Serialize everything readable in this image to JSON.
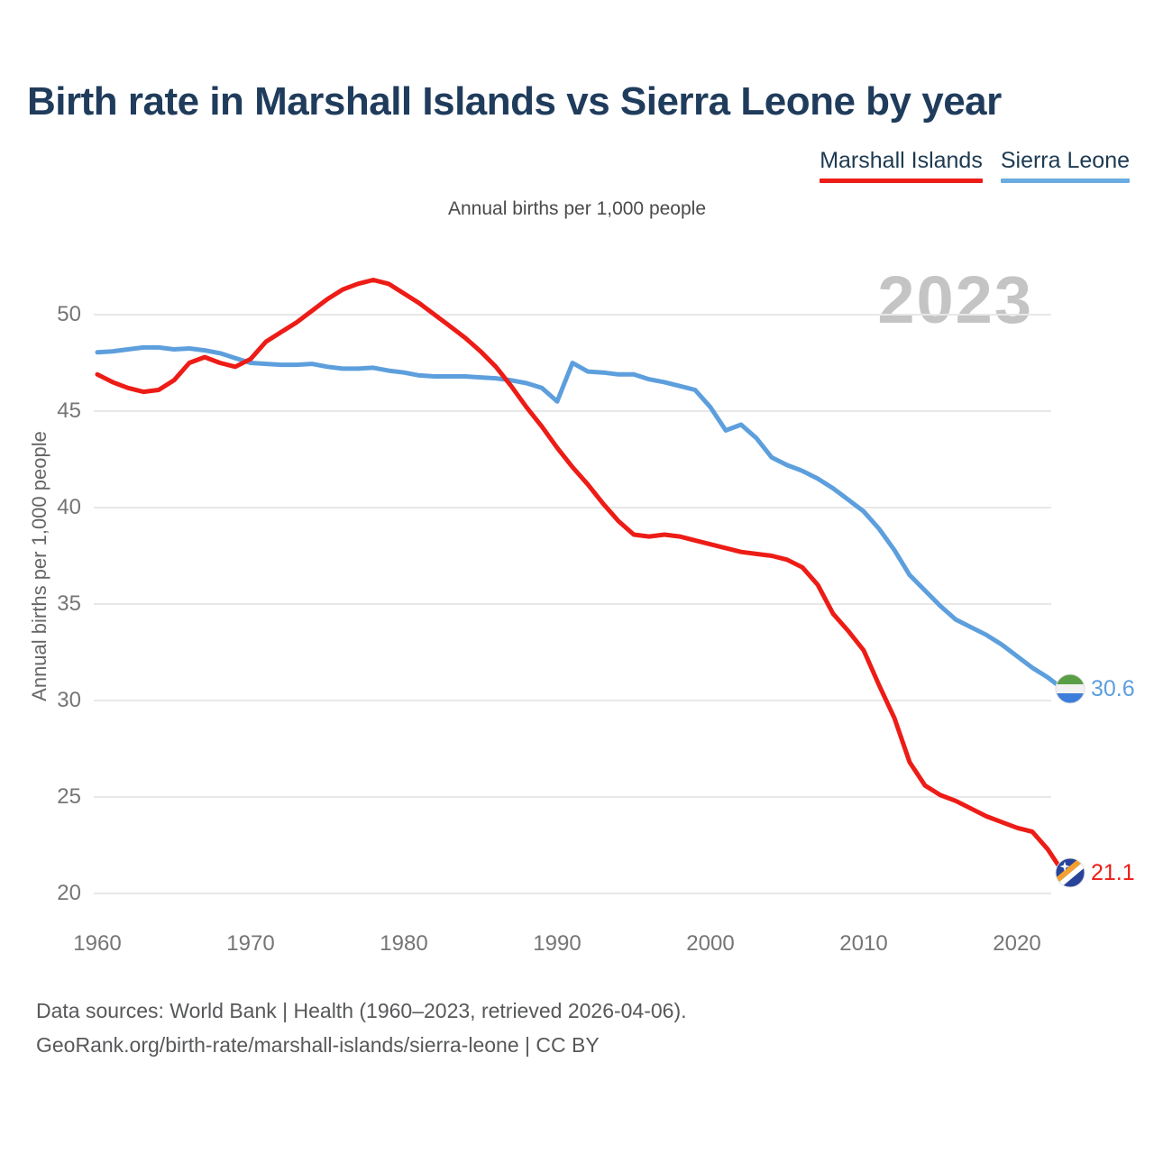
{
  "title": "Birth rate in Marshall Islands vs Sierra Leone by year",
  "subtitle": "Annual births per 1,000 people",
  "y_axis_label": "Annual births per 1,000 people",
  "watermark": "2023",
  "legend": {
    "items": [
      {
        "label": "Marshall Islands",
        "color": "#ed1c16"
      },
      {
        "label": "Sierra Leone",
        "color": "#6aabe0"
      }
    ]
  },
  "end_labels": {
    "sierra_leone": {
      "value": "30.6",
      "color": "#5d9fdd"
    },
    "marshall_islands": {
      "value": "21.1",
      "color": "#ed1c16"
    }
  },
  "footer": {
    "line1": "Data sources: World Bank | Health (1960–2023, retrieved 2026-04-06).",
    "line2": "GeoRank.org/birth-rate/marshall-islands/sierra-leone | CC BY"
  },
  "chart_data": {
    "type": "line",
    "title": "Birth rate in Marshall Islands vs Sierra Leone by year",
    "subtitle": "Annual births per 1,000 people",
    "xlabel": "",
    "ylabel": "Annual births per 1,000 people",
    "xlim": [
      1960,
      2023
    ],
    "ylim": [
      19.5,
      53
    ],
    "grid": "horizontal",
    "legend_position": "top-right",
    "x_ticks": [
      1960,
      1970,
      1980,
      1990,
      2000,
      2010,
      2020
    ],
    "x_tick_labels": [
      "1960",
      "1970",
      "1980",
      "1990",
      "2000",
      "2010",
      "2020"
    ],
    "y_ticks": [
      50,
      45,
      40,
      35,
      30,
      25,
      20
    ],
    "y_tick_labels": [
      "50",
      "45",
      "40",
      "35",
      "30",
      "25",
      "20"
    ],
    "x": [
      1960,
      1961,
      1962,
      1963,
      1964,
      1965,
      1966,
      1967,
      1968,
      1969,
      1970,
      1971,
      1972,
      1973,
      1974,
      1975,
      1976,
      1977,
      1978,
      1979,
      1980,
      1981,
      1982,
      1983,
      1984,
      1985,
      1986,
      1987,
      1988,
      1989,
      1990,
      1991,
      1992,
      1993,
      1994,
      1995,
      1996,
      1997,
      1998,
      1999,
      2000,
      2001,
      2002,
      2003,
      2004,
      2005,
      2006,
      2007,
      2008,
      2009,
      2010,
      2011,
      2012,
      2013,
      2014,
      2015,
      2016,
      2017,
      2018,
      2019,
      2020,
      2021,
      2022,
      2023
    ],
    "series": [
      {
        "name": "Marshall Islands",
        "color": "#ed1c16",
        "end_value": 21.1,
        "values": [
          46.9,
          46.5,
          46.2,
          46.0,
          46.1,
          46.6,
          47.5,
          47.8,
          47.5,
          47.3,
          47.7,
          48.6,
          49.1,
          49.6,
          50.2,
          50.8,
          51.3,
          51.6,
          51.8,
          51.6,
          51.1,
          50.6,
          50.0,
          49.4,
          48.8,
          48.1,
          47.3,
          46.3,
          45.2,
          44.2,
          43.1,
          42.1,
          41.2,
          40.2,
          39.3,
          38.6,
          38.5,
          38.6,
          38.5,
          38.3,
          38.1,
          37.9,
          37.7,
          37.6,
          37.5,
          37.3,
          36.9,
          36.0,
          34.5,
          33.6,
          32.6,
          30.8,
          29.1,
          26.8,
          25.6,
          25.1,
          24.8,
          24.4,
          24.0,
          23.7,
          23.4,
          23.2,
          22.3,
          21.1
        ]
      },
      {
        "name": "Sierra Leone",
        "color": "#5d9fdd",
        "end_value": 30.6,
        "values": [
          48.05,
          48.1,
          48.2,
          48.3,
          48.3,
          48.2,
          48.25,
          48.15,
          48.0,
          47.75,
          47.5,
          47.45,
          47.4,
          47.4,
          47.45,
          47.3,
          47.2,
          47.2,
          47.25,
          47.1,
          47.0,
          46.85,
          46.8,
          46.8,
          46.8,
          46.75,
          46.7,
          46.6,
          46.45,
          46.2,
          45.5,
          47.5,
          47.05,
          47.0,
          46.9,
          46.9,
          46.65,
          46.5,
          46.3,
          46.1,
          45.2,
          44.0,
          44.3,
          43.6,
          42.6,
          42.2,
          41.9,
          41.5,
          41.0,
          40.4,
          39.8,
          38.9,
          37.8,
          36.5,
          35.7,
          34.9,
          34.2,
          33.8,
          33.4,
          32.9,
          32.3,
          31.7,
          31.2,
          30.6
        ]
      }
    ],
    "annotations": {
      "watermark": "2023",
      "end_value_labels": {
        "Marshall Islands": "21.1",
        "Sierra Leone": "30.6"
      }
    }
  }
}
